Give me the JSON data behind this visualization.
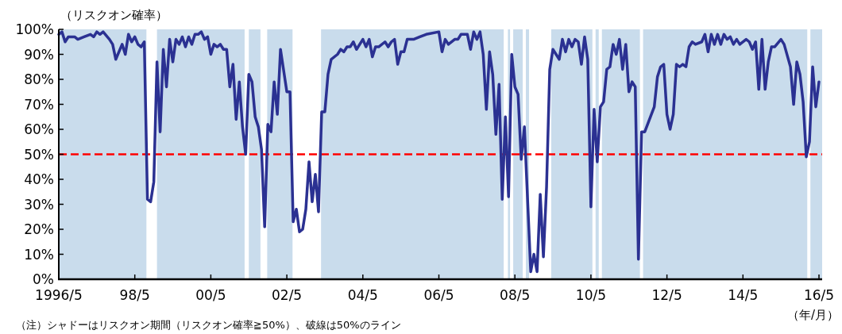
{
  "chart_data": {
    "type": "line",
    "ylabel": "（リスクオン確率）",
    "xlabel": "（年/月）",
    "annotations": [
      "（注）シャドーはリスクオン期間（リスクオン確率≧50%）、破線は50%のライン"
    ],
    "xlim": [
      "1996-05",
      "2016-06"
    ],
    "xticks": [
      {
        "value": "1996-05",
        "label": "1996/5"
      },
      {
        "value": "1998-05",
        "label": "98/5"
      },
      {
        "value": "2000-05",
        "label": "00/5"
      },
      {
        "value": "2002-05",
        "label": "02/5"
      },
      {
        "value": "2004-05",
        "label": "04/5"
      },
      {
        "value": "2006-05",
        "label": "06/5"
      },
      {
        "value": "2008-05",
        "label": "08/5"
      },
      {
        "value": "2010-05",
        "label": "10/5"
      },
      {
        "value": "2012-05",
        "label": "12/5"
      },
      {
        "value": "2014-05",
        "label": "14/5"
      },
      {
        "value": "2016-05",
        "label": "16/5"
      }
    ],
    "ylim": [
      0,
      100
    ],
    "yticks": [
      {
        "value": 0,
        "label": "0%"
      },
      {
        "value": 10,
        "label": "10%"
      },
      {
        "value": 20,
        "label": "20%"
      },
      {
        "value": 30,
        "label": "30%"
      },
      {
        "value": 40,
        "label": "40%"
      },
      {
        "value": 50,
        "label": "50%"
      },
      {
        "value": 60,
        "label": "60%"
      },
      {
        "value": 70,
        "label": "70%"
      },
      {
        "value": 80,
        "label": "80%"
      },
      {
        "value": 90,
        "label": "90%"
      },
      {
        "value": 100,
        "label": "100%"
      }
    ],
    "ref_lines": [
      {
        "axis": "y",
        "value": 50,
        "color": "#ff0000",
        "line_style": "dashed"
      }
    ],
    "bands": [
      {
        "axis": "x",
        "from": "1996-05",
        "to": "1998-08-21",
        "color": "#c9dcec"
      },
      {
        "axis": "x",
        "from": "1998-12",
        "to": "2001-03-21",
        "color": "#c9dcec"
      },
      {
        "axis": "x",
        "from": "2001-05",
        "to": "2001-08-21",
        "color": "#c9dcec"
      },
      {
        "axis": "x",
        "from": "2001-10-25",
        "to": "2002-06-25",
        "color": "#c9dcec"
      },
      {
        "axis": "x",
        "from": "2003-03-25",
        "to": "2008-01-15",
        "color": "#c9dcec"
      },
      {
        "axis": "x",
        "from": "2008-02-25",
        "to": "2008-03-15",
        "color": "#c9dcec"
      },
      {
        "axis": "x",
        "from": "2008-04-15",
        "to": "2008-07-15",
        "color": "#c9dcec"
      },
      {
        "axis": "x",
        "from": "2008-08-15",
        "to": "2008-09-15",
        "color": "#c9dcec"
      },
      {
        "axis": "x",
        "from": "2009-04-15",
        "to": "2010-05-15",
        "color": "#c9dcec"
      },
      {
        "axis": "x",
        "from": "2010-06-15",
        "to": "2010-07-15",
        "color": "#c9dcec"
      },
      {
        "axis": "x",
        "from": "2010-08-15",
        "to": "2011-08-15",
        "color": "#c9dcec"
      },
      {
        "axis": "x",
        "from": "2011-09-15",
        "to": "2016-01-10",
        "color": "#c9dcec"
      },
      {
        "axis": "x",
        "from": "2016-02-10",
        "to": "2016-06",
        "color": "#c9dcec"
      }
    ],
    "series": [
      {
        "color": "#2b3192",
        "x": [
          "1996-05",
          "1996-06",
          "1996-07",
          "1996-08",
          "1996-10",
          "1996-11",
          "1997-01",
          "1997-03",
          "1997-04",
          "1997-05",
          "1997-06",
          "1997-07",
          "1997-09",
          "1997-10",
          "1997-11",
          "1998-01",
          "1998-02",
          "1998-03",
          "1998-04",
          "1998-05",
          "1998-06",
          "1998-07",
          "1998-08",
          "1998-09",
          "1998-10",
          "1998-11",
          "1998-12",
          "1999-01",
          "1999-02",
          "1999-03",
          "1999-04",
          "1999-05",
          "1999-06",
          "1999-07",
          "1999-08",
          "1999-09",
          "1999-10",
          "1999-11",
          "1999-12",
          "2000-01",
          "2000-02",
          "2000-03",
          "2000-04",
          "2000-05",
          "2000-06",
          "2000-07",
          "2000-08",
          "2000-09",
          "2000-10",
          "2000-11",
          "2000-12",
          "2001-01",
          "2001-02",
          "2001-03",
          "2001-04",
          "2001-05",
          "2001-06",
          "2001-07",
          "2001-08",
          "2001-09",
          "2001-10",
          "2001-11",
          "2001-12",
          "2002-01",
          "2002-02",
          "2002-03",
          "2002-05",
          "2002-06",
          "2002-07",
          "2002-08",
          "2002-09",
          "2002-10",
          "2002-11",
          "2002-12",
          "2003-01",
          "2003-02",
          "2003-03",
          "2003-04",
          "2003-05",
          "2003-06",
          "2003-07",
          "2003-09",
          "2003-10",
          "2003-11",
          "2003-12",
          "2004-01",
          "2004-02",
          "2004-03",
          "2004-05",
          "2004-06",
          "2004-07",
          "2004-08",
          "2004-09",
          "2004-10",
          "2004-12",
          "2005-01",
          "2005-02",
          "2005-03",
          "2005-04",
          "2005-05",
          "2005-06",
          "2005-07",
          "2005-09",
          "2005-11",
          "2006-01",
          "2006-05",
          "2006-06",
          "2006-07",
          "2006-08",
          "2006-10",
          "2006-11",
          "2006-12",
          "2007-02",
          "2007-03",
          "2007-04",
          "2007-05",
          "2007-06",
          "2007-07",
          "2007-08",
          "2007-09",
          "2007-10",
          "2007-11",
          "2007-12",
          "2008-01",
          "2008-02",
          "2008-03",
          "2008-04",
          "2008-05",
          "2008-06",
          "2008-07",
          "2008-08",
          "2008-10",
          "2008-11",
          "2008-12",
          "2009-01",
          "2009-02",
          "2009-03",
          "2009-04",
          "2009-05",
          "2009-07",
          "2009-08",
          "2009-09",
          "2009-10",
          "2009-11",
          "2009-12",
          "2010-01",
          "2010-02",
          "2010-03",
          "2010-04",
          "2010-05",
          "2010-06",
          "2010-07",
          "2010-08",
          "2010-09",
          "2010-10",
          "2010-11",
          "2010-12",
          "2011-01",
          "2011-02",
          "2011-03",
          "2011-04",
          "2011-05",
          "2011-06",
          "2011-07",
          "2011-08",
          "2011-09",
          "2011-10",
          "2012-01",
          "2012-02",
          "2012-03",
          "2012-04",
          "2012-05",
          "2012-06",
          "2012-07",
          "2012-08",
          "2012-09",
          "2012-10",
          "2012-11",
          "2012-12",
          "2013-01",
          "2013-02",
          "2013-04",
          "2013-05",
          "2013-06",
          "2013-07",
          "2013-08",
          "2013-09",
          "2013-10",
          "2013-11",
          "2013-12",
          "2014-01",
          "2014-02",
          "2014-03",
          "2014-04",
          "2014-06",
          "2014-07",
          "2014-08",
          "2014-09",
          "2014-10",
          "2014-11",
          "2014-12",
          "2015-01",
          "2015-02",
          "2015-03",
          "2015-05",
          "2015-06",
          "2015-08",
          "2015-09",
          "2015-10",
          "2015-11",
          "2015-12",
          "2016-01",
          "2016-02",
          "2016-03",
          "2016-04",
          "2016-05"
        ],
        "values": [
          98,
          99,
          95,
          97,
          97,
          96,
          97,
          98,
          97,
          99,
          98,
          99,
          96,
          94,
          88,
          94,
          90,
          98,
          95,
          97,
          94,
          93,
          95,
          32,
          31,
          39,
          87,
          59,
          92,
          77,
          96,
          87,
          96,
          94,
          97,
          93,
          97,
          94,
          98,
          98,
          99,
          96,
          97,
          90,
          94,
          93,
          94,
          92,
          92,
          77,
          86,
          64,
          79,
          61,
          50,
          82,
          79,
          65,
          61,
          52,
          21,
          62,
          59,
          79,
          66,
          92,
          75,
          75,
          23,
          28,
          19,
          20,
          28,
          47,
          31,
          42,
          27,
          67,
          67,
          82,
          88,
          90,
          92,
          91,
          93,
          93,
          95,
          92,
          96,
          93,
          96,
          89,
          93,
          93,
          95,
          93,
          95,
          96,
          86,
          91,
          91,
          96,
          96,
          97,
          98,
          99,
          91,
          96,
          94,
          96,
          96,
          98,
          98,
          92,
          99,
          96,
          99,
          90,
          68,
          91,
          82,
          58,
          78,
          32,
          65,
          33,
          90,
          77,
          74,
          48,
          61,
          3,
          10,
          3,
          34,
          9,
          37,
          84,
          92,
          88,
          96,
          91,
          96,
          93,
          96,
          95,
          86,
          97,
          88,
          29,
          68,
          47,
          69,
          71,
          84,
          85,
          94,
          90,
          96,
          84,
          94,
          75,
          79,
          77,
          8,
          59,
          59,
          69,
          81,
          85,
          86,
          66,
          60,
          66,
          86,
          85,
          86,
          85,
          93,
          95,
          94,
          95,
          98,
          91,
          98,
          94,
          98,
          94,
          98,
          96,
          97,
          94,
          96,
          94,
          96,
          95,
          92,
          95,
          76,
          96,
          76,
          87,
          93,
          93,
          96,
          94,
          85,
          70,
          87,
          82,
          71,
          49,
          55,
          85,
          69,
          79
        ]
      }
    ]
  }
}
